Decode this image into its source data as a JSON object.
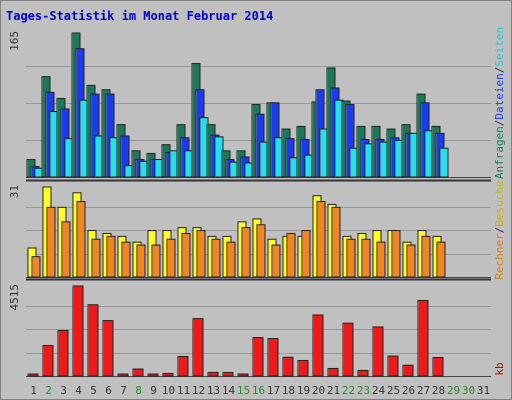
{
  "title": "Tages-Statistik im Monat Februar 2014",
  "colors": {
    "background": "#c0c0c0",
    "title": "#0000cc",
    "grid": "#999999",
    "anfragen": "#197a57",
    "dateien": "#1a3cf0",
    "seiten": "#21e0f0",
    "besuche": "#ffff22",
    "rechner": "#f28522",
    "kb": "#f01818",
    "weekday": "#333333",
    "weekend": "#2a8a2a",
    "divider": "#333333"
  },
  "legends": {
    "top": [
      {
        "text": "Anfragen",
        "color": "#197a57"
      },
      {
        "text": "/",
        "color": "#333333"
      },
      {
        "text": "Dateien",
        "color": "#1a3cf0"
      },
      {
        "text": "/",
        "color": "#333333"
      },
      {
        "text": "Seiten",
        "color": "#21c8d8"
      }
    ],
    "middle": [
      {
        "text": "Rechner",
        "color": "#e07a10"
      },
      {
        "text": "/",
        "color": "#333333"
      },
      {
        "text": "Besuche",
        "color": "#c8b400"
      }
    ],
    "bottom": [
      {
        "text": "kb",
        "color": "#d00000"
      }
    ]
  },
  "chart_data": [
    {
      "type": "bar",
      "panel": "anfragen-dateien-seiten",
      "ymax_label": "165",
      "ymax": 165,
      "categories": [
        "1",
        "2",
        "3",
        "4",
        "5",
        "6",
        "7",
        "8",
        "9",
        "10",
        "11",
        "12",
        "13",
        "14",
        "15",
        "16",
        "17",
        "18",
        "19",
        "20",
        "21",
        "22",
        "23",
        "24",
        "25",
        "26",
        "27",
        "28",
        "29",
        "30",
        "31"
      ],
      "weekend": [
        false,
        true,
        false,
        false,
        false,
        false,
        false,
        true,
        false,
        false,
        false,
        false,
        false,
        false,
        true,
        true,
        false,
        false,
        false,
        false,
        false,
        true,
        true,
        false,
        false,
        false,
        false,
        false,
        true,
        true,
        false
      ],
      "series": [
        {
          "name": "Anfragen",
          "values": [
            20,
            115,
            90,
            165,
            105,
            100,
            60,
            30,
            27,
            37,
            60,
            130,
            60,
            30,
            30,
            83,
            85,
            55,
            58,
            86,
            125,
            87,
            58,
            58,
            55,
            60,
            95,
            58,
            0,
            0,
            0
          ]
        },
        {
          "name": "Dateien",
          "values": [
            12,
            97,
            78,
            147,
            95,
            95,
            47,
            20,
            20,
            28,
            45,
            100,
            48,
            20,
            23,
            72,
            85,
            44,
            43,
            100,
            102,
            83,
            43,
            43,
            45,
            50,
            85,
            50,
            0,
            0,
            0
          ]
        },
        {
          "name": "Seiten",
          "values": [
            10,
            75,
            44,
            88,
            47,
            45,
            13,
            18,
            20,
            30,
            30,
            68,
            46,
            17,
            16,
            40,
            45,
            22,
            25,
            55,
            88,
            33,
            38,
            40,
            42,
            50,
            53,
            33,
            0,
            0,
            0
          ]
        }
      ]
    },
    {
      "type": "bar",
      "panel": "besuche-rechner",
      "ymax_label": "31",
      "ymax": 31,
      "categories": [
        "1",
        "2",
        "3",
        "4",
        "5",
        "6",
        "7",
        "8",
        "9",
        "10",
        "11",
        "12",
        "13",
        "14",
        "15",
        "16",
        "17",
        "18",
        "19",
        "20",
        "21",
        "22",
        "23",
        "24",
        "25",
        "26",
        "27",
        "28",
        "29",
        "30",
        "31"
      ],
      "series": [
        {
          "name": "Besuche",
          "values": [
            10,
            31,
            24,
            29,
            16,
            15,
            14,
            12,
            16,
            16,
            17,
            17,
            14,
            14,
            19,
            20,
            13,
            14,
            14,
            28,
            25,
            14,
            15,
            16,
            16,
            12,
            16,
            14,
            0,
            0,
            0
          ]
        },
        {
          "name": "Rechner",
          "values": [
            7,
            24,
            19,
            26,
            13,
            14,
            12,
            11,
            11,
            13,
            15,
            16,
            13,
            12,
            17,
            18,
            11,
            15,
            16,
            26,
            24,
            13,
            13,
            12,
            16,
            11,
            14,
            12,
            0,
            0,
            0
          ]
        }
      ]
    },
    {
      "type": "bar",
      "panel": "kb",
      "ymax_label": "4515",
      "ymax": 4515,
      "categories": [
        "1",
        "2",
        "3",
        "4",
        "5",
        "6",
        "7",
        "8",
        "9",
        "10",
        "11",
        "12",
        "13",
        "14",
        "15",
        "16",
        "17",
        "18",
        "19",
        "20",
        "21",
        "22",
        "23",
        "24",
        "25",
        "26",
        "27",
        "28",
        "29",
        "30",
        "31"
      ],
      "series": [
        {
          "name": "kb",
          "values": [
            30,
            1530,
            2280,
            4515,
            3575,
            2780,
            30,
            350,
            30,
            130,
            980,
            2880,
            180,
            180,
            90,
            1930,
            1880,
            940,
            780,
            3060,
            380,
            2650,
            280,
            2460,
            1000,
            540,
            3790,
            930,
            0,
            0,
            0
          ]
        }
      ]
    }
  ]
}
